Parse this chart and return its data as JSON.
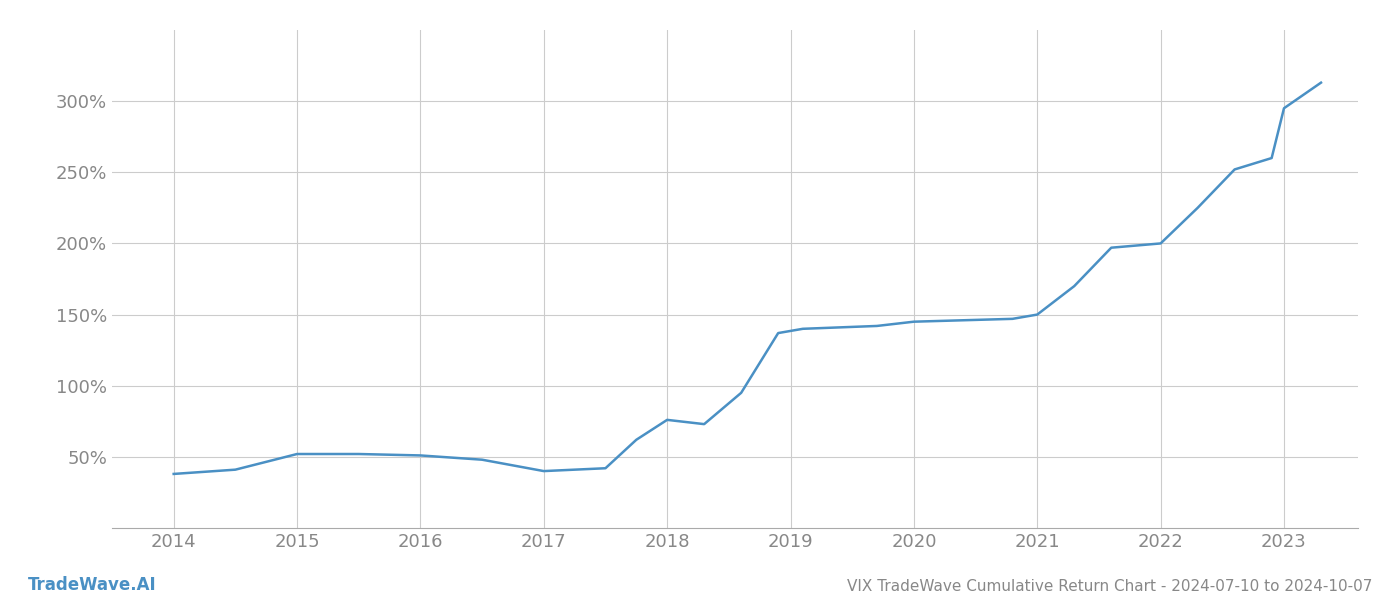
{
  "title": "VIX TradeWave Cumulative Return Chart - 2024-07-10 to 2024-10-07",
  "watermark": "TradeWave.AI",
  "x_values": [
    2014.0,
    2014.5,
    2015.0,
    2015.5,
    2016.0,
    2016.5,
    2017.0,
    2017.5,
    2017.75,
    2018.0,
    2018.3,
    2018.6,
    2018.9,
    2019.1,
    2019.4,
    2019.7,
    2020.0,
    2020.4,
    2020.8,
    2021.0,
    2021.3,
    2021.6,
    2022.0,
    2022.3,
    2022.6,
    2022.9,
    2023.0,
    2023.3
  ],
  "y_values": [
    38,
    41,
    52,
    52,
    51,
    48,
    40,
    42,
    62,
    76,
    73,
    95,
    137,
    140,
    141,
    142,
    145,
    146,
    147,
    150,
    170,
    197,
    200,
    225,
    252,
    260,
    295,
    313
  ],
  "line_color": "#4a90c4",
  "line_width": 1.8,
  "background_color": "#ffffff",
  "grid_color": "#cccccc",
  "title_color": "#888888",
  "watermark_color": "#4a90c4",
  "tick_color": "#888888",
  "ylim": [
    0,
    350
  ],
  "yticks": [
    50,
    100,
    150,
    200,
    250,
    300
  ],
  "xlim": [
    2013.5,
    2023.6
  ],
  "xticks": [
    2014,
    2015,
    2016,
    2017,
    2018,
    2019,
    2020,
    2021,
    2022,
    2023
  ],
  "title_fontsize": 11,
  "watermark_fontsize": 12,
  "tick_fontsize": 13
}
